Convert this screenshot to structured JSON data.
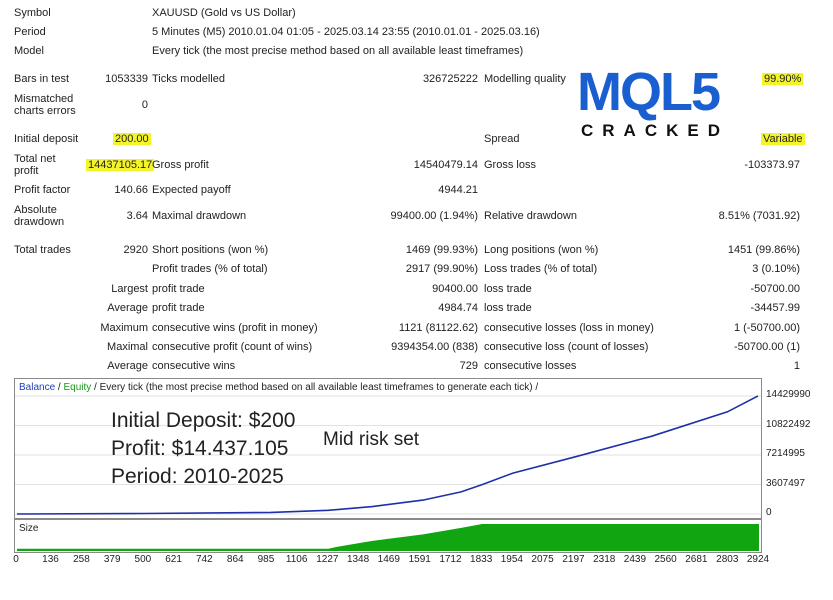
{
  "report": {
    "symbol_label": "Symbol",
    "symbol_value": "XAUUSD (Gold vs US Dollar)",
    "period_label": "Period",
    "period_value": "5 Minutes (M5) 2010.01.04 01:05 - 2025.03.14 23:55 (2010.01.01 - 2025.03.16)",
    "model_label": "Model",
    "model_value": "Every tick (the most precise method based on all available least timeframes)",
    "bars_label": "Bars in test",
    "bars_value": "1053339",
    "ticks_label": "Ticks modelled",
    "ticks_value": "326725222",
    "quality_label": "Modelling quality",
    "quality_value": "99.90%",
    "mismatch_label": "Mismatched charts errors",
    "mismatch_value": "0",
    "deposit_label": "Initial deposit",
    "deposit_value": "200.00",
    "spread_label": "Spread",
    "spread_value": "Variable",
    "net_label": "Total net profit",
    "net_value": "14437105.17",
    "gross_profit_label": "Gross profit",
    "gross_profit_value": "14540479.14",
    "gross_loss_label": "Gross loss",
    "gross_loss_value": "-103373.97",
    "pf_label": "Profit factor",
    "pf_value": "140.66",
    "payoff_label": "Expected payoff",
    "payoff_value": "4944.21",
    "absdd_label": "Absolute drawdown",
    "absdd_value": "3.64",
    "maxdd_label": "Maximal drawdown",
    "maxdd_value": "99400.00 (1.94%)",
    "reldd_label": "Relative drawdown",
    "reldd_value": "8.51% (7031.92)",
    "trades_label": "Total trades",
    "trades_value": "2920",
    "short_label": "Short positions (won %)",
    "short_value": "1469 (99.93%)",
    "long_label": "Long positions (won %)",
    "long_value": "1451 (99.86%)",
    "ptrades_label": "Profit trades (% of total)",
    "ptrades_value": "2917 (99.90%)",
    "ltrades_label": "Loss trades (% of total)",
    "ltrades_value": "3 (0.10%)",
    "largest_label": "Largest",
    "largest_profit_label": "profit trade",
    "largest_profit_value": "90400.00",
    "largest_loss_label": "loss trade",
    "largest_loss_value": "-50700.00",
    "average_label": "Average",
    "avg_profit_label": "profit trade",
    "avg_profit_value": "4984.74",
    "avg_loss_label": "loss trade",
    "avg_loss_value": "-34457.99",
    "maximum_label": "Maximum",
    "max_wins_label": "consecutive wins (profit in money)",
    "max_wins_value": "1121 (81122.62)",
    "max_losses_label": "consecutive losses (loss in money)",
    "max_losses_value": "1 (-50700.00)",
    "maximal_label": "Maximal",
    "maximal_profit_label": "consecutive profit (count of wins)",
    "maximal_profit_value": "9394354.00 (838)",
    "maximal_loss_label": "consecutive loss (count of losses)",
    "maximal_loss_value": "-50700.00 (1)",
    "average2_label": "Average",
    "avg_wins_label": "consecutive wins",
    "avg_wins_value": "729",
    "avg_losses_label": "consecutive losses",
    "avg_losses_value": "1"
  },
  "logo": {
    "main_text": "MQL5",
    "sub_text": "CRACKED",
    "color": "#1a5fd0",
    "accent": "#d9262e"
  },
  "chart": {
    "header_balance": "Balance",
    "header_sep": " / ",
    "header_equity": "Equity",
    "header_rest": " / Every tick (the most precise method based on all available least timeframes to generate each tick) /",
    "overlay_line1": "Initial Deposit: $200",
    "overlay_line2": "Profit: $14.437.105",
    "overlay_line3": "Period: 2010-2025",
    "overlay_note": "Mid risk set",
    "size_label": "Size",
    "y_ticks": [
      "14429990",
      "10822492",
      "7214995",
      "3607497",
      "0"
    ],
    "x_ticks": [
      "0",
      "136",
      "258",
      "379",
      "500",
      "621",
      "742",
      "864",
      "985",
      "1106",
      "1227",
      "1348",
      "1469",
      "1591",
      "1712",
      "1833",
      "1954",
      "2075",
      "2197",
      "2318",
      "2439",
      "2560",
      "2681",
      "2803",
      "2924"
    ],
    "balance_color": "#1f2fa8",
    "size_color": "#11a611"
  },
  "chart_data": {
    "type": "line",
    "x": [
      0,
      500,
      1000,
      1227,
      1400,
      1600,
      1750,
      1833,
      1954,
      2200,
      2500,
      2800,
      2920
    ],
    "series": [
      {
        "name": "Balance",
        "values": [
          200,
          60000,
          200000,
          450000,
          900000,
          1700000,
          2700000,
          3600000,
          5000000,
          7000000,
          9500000,
          12500000,
          14437105
        ]
      }
    ],
    "ylim": [
      0,
      14429990
    ],
    "xlim": [
      0,
      2924
    ],
    "size": {
      "x": [
        0,
        1227,
        1260,
        1400,
        1600,
        1750,
        1833,
        1880,
        2924
      ],
      "values": [
        0.05,
        0.05,
        0.12,
        0.35,
        0.6,
        0.85,
        1.0,
        1.0,
        1.0
      ]
    }
  }
}
